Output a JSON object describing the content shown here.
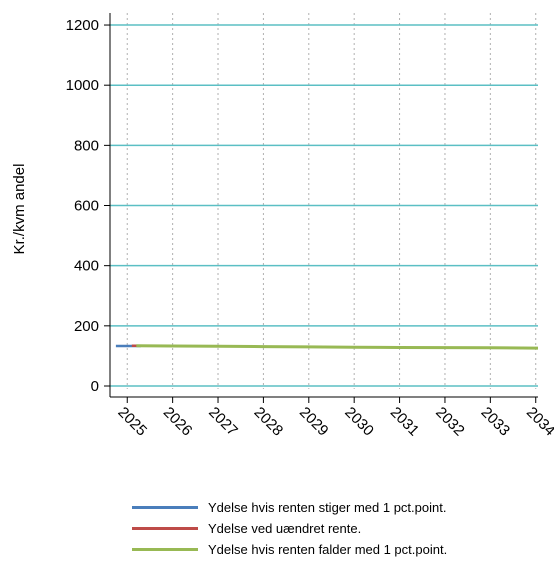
{
  "chart_data": {
    "type": "line",
    "ylabel": "Kr./kvm andel",
    "xlabel": "",
    "title": "",
    "x": [
      "2025",
      "2026",
      "2027",
      "2028",
      "2029",
      "2030",
      "2031",
      "2032",
      "2033",
      "2034"
    ],
    "x_range": [
      2024.62,
      2034.05
    ],
    "ylim": [
      -10,
      1240
    ],
    "yticks": [
      0,
      200,
      400,
      600,
      800,
      1000,
      1200
    ],
    "grid": {
      "horizontal": true,
      "vertical": "dotted"
    },
    "colors": {
      "gridline": "#5bbfc4",
      "vgrid": "#b0b0b0",
      "axis": "#000000"
    },
    "series": [
      {
        "name": "Ydelse hvis renten stiger med 1 pct.point.",
        "color": "#4a7ebb",
        "points": [
          [
            2024.75,
            133
          ],
          [
            2025.3,
            133
          ]
        ]
      },
      {
        "name": "Ydelse ved uændret rente.",
        "color": "#be4b48",
        "points": [
          [
            2025.1,
            134
          ],
          [
            2025.5,
            134
          ]
        ]
      },
      {
        "name": "Ydelse hvis renten falder med 1 pct.point.",
        "color": "#98b954",
        "points": [
          [
            2025.2,
            134
          ],
          [
            2026,
            133
          ],
          [
            2027,
            132
          ],
          [
            2028,
            131
          ],
          [
            2029,
            130
          ],
          [
            2030,
            129
          ],
          [
            2031,
            128
          ],
          [
            2032,
            127.5
          ],
          [
            2033,
            127
          ],
          [
            2034,
            126
          ],
          [
            2034.05,
            126
          ]
        ]
      }
    ],
    "legend": {
      "position": "bottom"
    }
  }
}
